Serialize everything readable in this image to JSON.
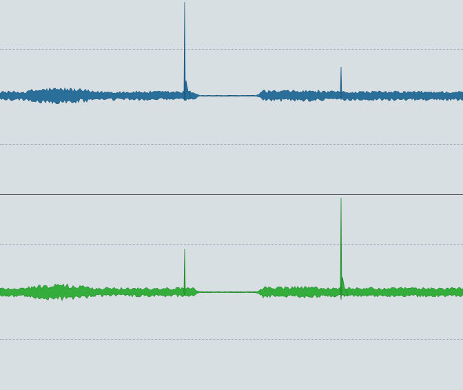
{
  "colors": {
    "background": "#d8dfe2",
    "grid": "#9aa3a8",
    "divider": "#4a4f52",
    "channel_top": "#2a6e9a",
    "channel_top_outline": "#1d5a82",
    "channel_bottom": "#34ad3c",
    "channel_bottom_outline": "#228a2a"
  },
  "channels": [
    {
      "id": "top",
      "color": "#2a6e9a",
      "outline": "#1d5a82"
    },
    {
      "id": "bottom",
      "color": "#34ad3c",
      "outline": "#228a2a"
    }
  ]
}
